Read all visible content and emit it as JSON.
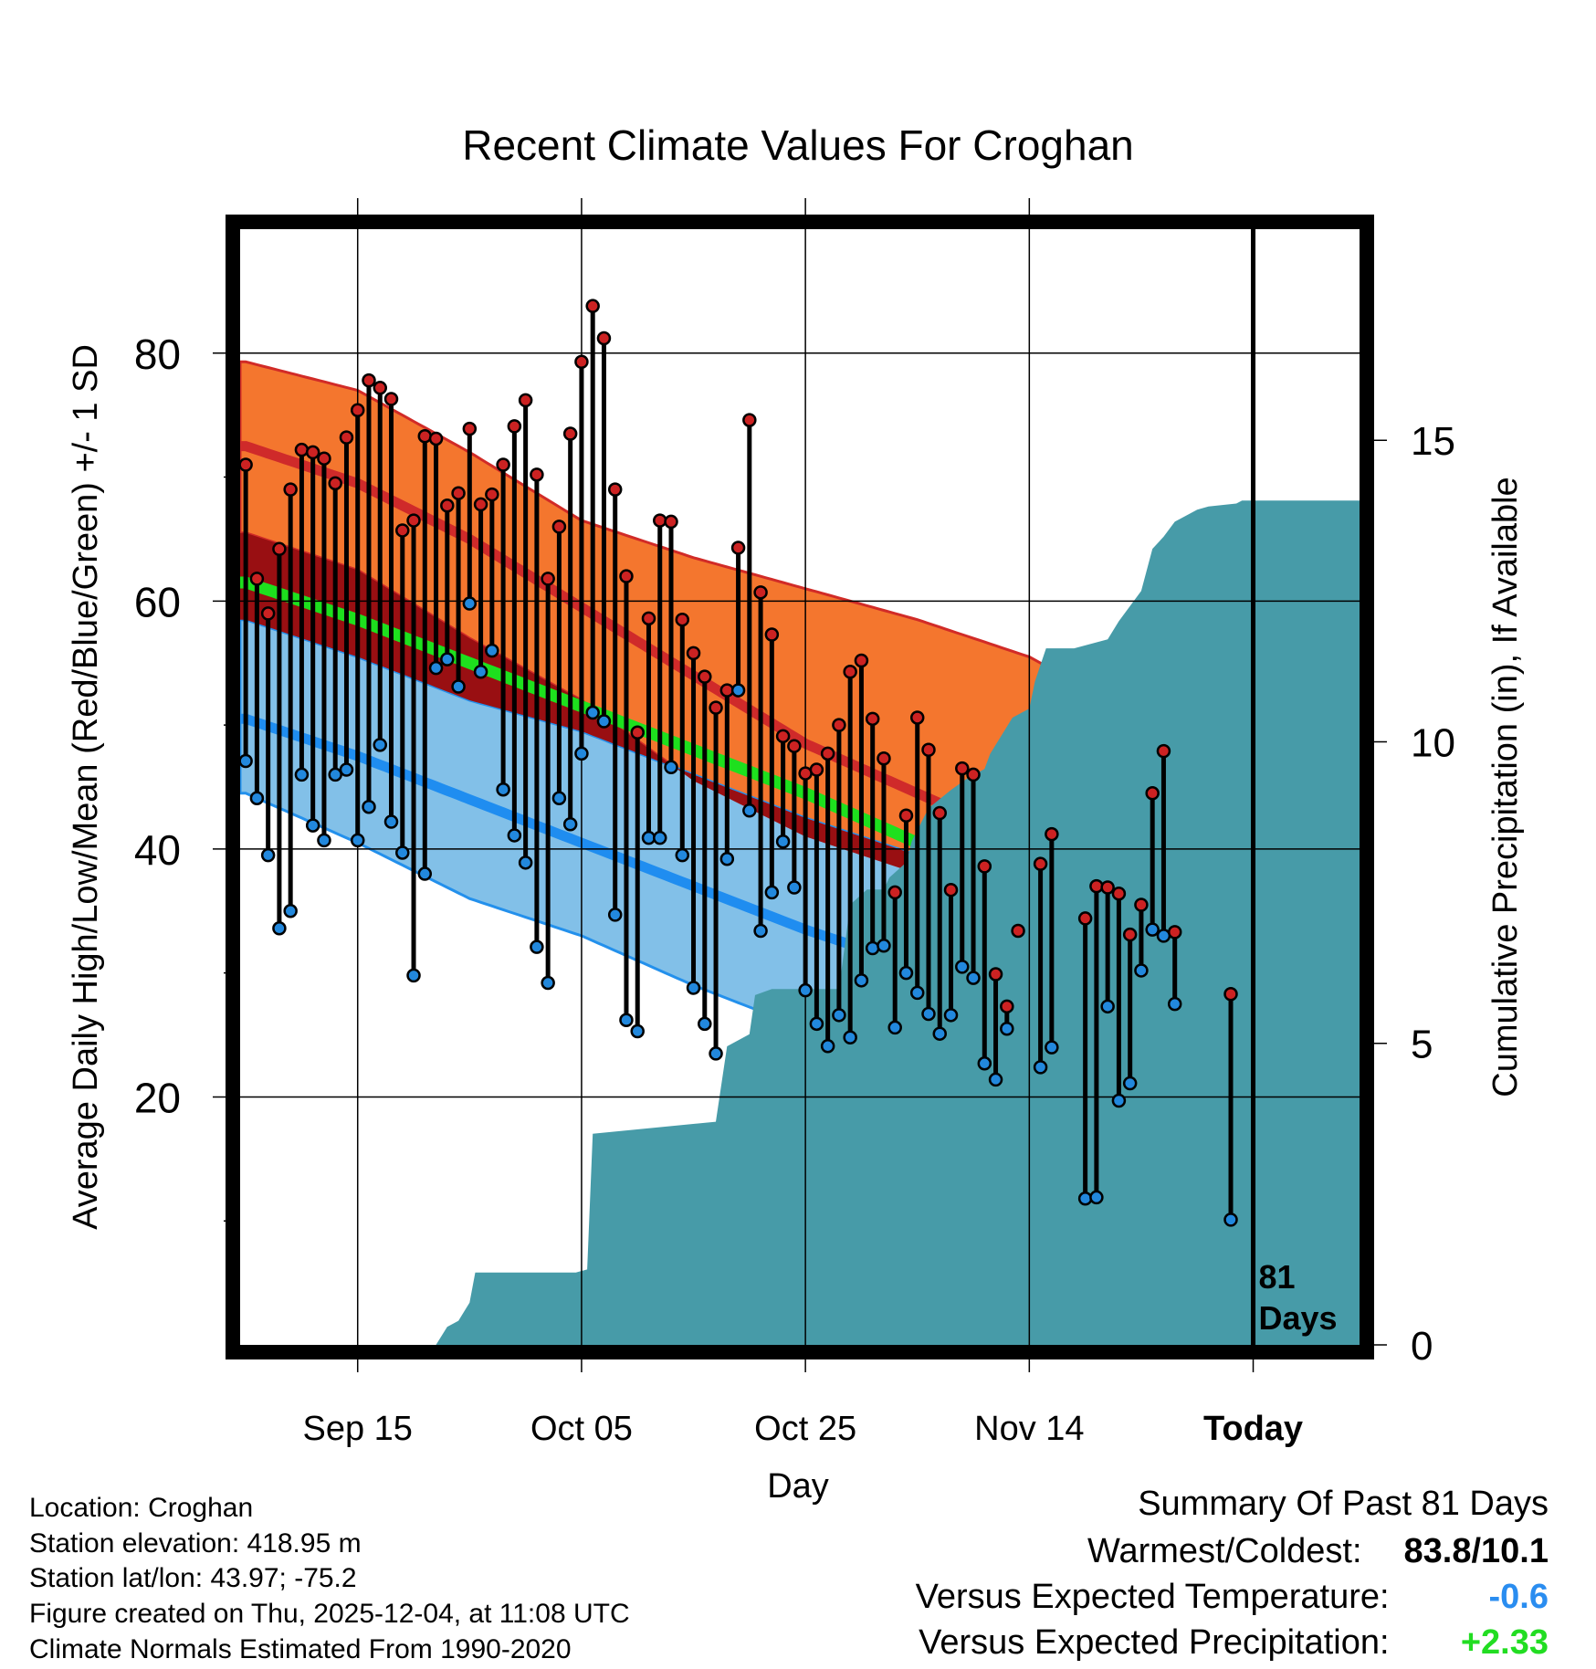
{
  "chart_data": {
    "type": "line",
    "title": "Recent Climate Values For Croghan",
    "xlabel": "Day",
    "ylabel_left": "Average Daily High/Low/Mean (Red/Blue/Green) +/- 1 SD",
    "ylabel_right": "Cumulative Precipitation (in), If Available",
    "x_range": [
      -0.5,
      99.5
    ],
    "x_ticks": [
      {
        "day": 10,
        "label": "Sep 15"
      },
      {
        "day": 30,
        "label": "Oct 05"
      },
      {
        "day": 50,
        "label": "Oct 25"
      },
      {
        "day": 70,
        "label": "Nov 14"
      },
      {
        "day": 90,
        "label": "Today"
      }
    ],
    "today_day": 90,
    "days_label": [
      "81",
      "Days"
    ],
    "y_left_range": [
      0,
      90
    ],
    "y_left_ticks": [
      20,
      40,
      60,
      80
    ],
    "y_left_minor": [
      10,
      30,
      50,
      70
    ],
    "y_right_range": [
      0,
      18.5
    ],
    "y_right_ticks": [
      0,
      5,
      10,
      15
    ],
    "normal_high": {
      "day": [
        0,
        10,
        20,
        30,
        40,
        50,
        60,
        70,
        80,
        90,
        99.5
      ],
      "mean": [
        72.5,
        69.5,
        65.0,
        59.5,
        54.0,
        48.5,
        44.5,
        40.5,
        36.5,
        32.5,
        28.7
      ],
      "upper": [
        79.3,
        77.0,
        72.0,
        66.5,
        63.5,
        61.0,
        58.5,
        55.5,
        50.5,
        45.5,
        42.5
      ],
      "lower": [
        65.5,
        62.5,
        57.0,
        52.0,
        45.5,
        41.0,
        38.0,
        33.5,
        28.0,
        24.0,
        22.0
      ]
    },
    "normal_mean": {
      "day": [
        0,
        10,
        20,
        30,
        40,
        50,
        60,
        70,
        80,
        90,
        99.5
      ],
      "mean": [
        61.5,
        58.5,
        55.0,
        51.5,
        48.0,
        44.5,
        40.5,
        36.0,
        31.5,
        27.5,
        25.0
      ]
    },
    "normal_low": {
      "day": [
        0,
        10,
        20,
        30,
        40,
        50,
        60,
        70,
        80,
        90,
        99.5
      ],
      "mean": [
        50.5,
        47.5,
        44.0,
        40.5,
        37.0,
        33.5,
        30.5,
        27.0,
        23.0,
        19.5,
        17.0
      ],
      "upper": [
        58.5,
        55.5,
        52.0,
        49.5,
        46.0,
        42.5,
        39.5,
        37.0,
        34.0,
        31.5,
        29.5
      ],
      "lower": [
        44.5,
        40.5,
        36.0,
        33.0,
        29.0,
        25.5,
        21.5,
        17.5,
        13.0,
        9.5,
        7.0
      ]
    },
    "series": [
      {
        "name": "Daily High",
        "color": "#cc2222",
        "values": [
          71.0,
          61.8,
          59.0,
          64.2,
          69.0,
          72.2,
          72.0,
          71.5,
          69.5,
          73.2,
          75.4,
          77.8,
          77.2,
          76.3,
          65.7,
          66.5,
          73.3,
          73.1,
          67.7,
          68.7,
          73.9,
          67.8,
          68.6,
          71.0,
          74.1,
          76.2,
          70.2,
          61.8,
          66.0,
          73.5,
          79.3,
          83.8,
          81.2,
          69.0,
          62.0,
          49.4,
          58.6,
          66.5,
          66.4,
          58.5,
          55.8,
          53.9,
          51.4,
          52.8,
          64.3,
          74.6,
          60.7,
          57.3,
          49.1,
          48.3,
          46.1,
          46.4,
          47.7,
          50.0,
          54.3,
          55.2,
          50.5,
          47.3,
          36.5,
          42.7,
          50.6,
          48.0,
          42.9,
          36.7,
          46.5,
          46.0,
          38.6,
          29.9,
          27.3,
          33.4,
          null,
          38.8,
          41.2,
          null,
          null,
          34.4,
          37.0,
          36.9,
          36.4,
          33.1,
          35.5,
          44.5,
          47.9,
          33.3,
          null,
          null,
          null,
          null,
          28.3,
          null,
          null,
          null,
          null,
          null
        ]
      },
      {
        "name": "Daily Low",
        "color": "#2288dd",
        "values": [
          47.1,
          44.1,
          39.5,
          33.6,
          35.0,
          46.0,
          41.9,
          40.7,
          46.0,
          46.4,
          40.7,
          43.4,
          48.4,
          42.2,
          39.7,
          29.8,
          38.0,
          54.6,
          55.3,
          53.1,
          59.8,
          54.3,
          56.0,
          44.8,
          41.1,
          38.9,
          32.1,
          29.2,
          44.1,
          42.0,
          47.7,
          51.0,
          50.3,
          34.7,
          26.2,
          25.3,
          40.9,
          40.9,
          46.6,
          39.5,
          28.8,
          25.9,
          23.5,
          39.2,
          52.8,
          43.1,
          33.4,
          36.5,
          40.6,
          36.9,
          28.6,
          25.9,
          24.1,
          26.6,
          24.8,
          29.4,
          32.0,
          32.2,
          25.6,
          30.0,
          28.4,
          26.7,
          25.1,
          26.6,
          30.5,
          29.6,
          22.7,
          21.4,
          25.5,
          null,
          null,
          22.4,
          24.0,
          null,
          null,
          11.8,
          11.9,
          27.3,
          19.7,
          21.1,
          30.2,
          33.5,
          33.0,
          27.5,
          null,
          null,
          null,
          null,
          10.1,
          null,
          null,
          null,
          null,
          null
        ]
      }
    ],
    "precip_cumulative": {
      "day": [
        17,
        18,
        19,
        20,
        20.5,
        29.5,
        30.5,
        31,
        42,
        43,
        45,
        45.5,
        47,
        48,
        53,
        54,
        55.5,
        57,
        57.5,
        59,
        59.5,
        61,
        63,
        64.5,
        66,
        66.5,
        68,
        68.5,
        70,
        70.5,
        71.5,
        72,
        74,
        77,
        78,
        80,
        81,
        82,
        83,
        83.5,
        85,
        86,
        88.5,
        89,
        99.5
      ],
      "values": [
        0,
        0.3,
        0.4,
        0.7,
        1.2,
        1.2,
        1.25,
        3.5,
        3.7,
        4.95,
        5.15,
        5.8,
        5.9,
        5.9,
        5.9,
        7.3,
        7.55,
        7.55,
        7.75,
        8.0,
        8.35,
        8.9,
        9.2,
        9.4,
        9.55,
        9.8,
        10.25,
        10.4,
        10.55,
        11.0,
        11.55,
        11.55,
        11.55,
        11.7,
        12.0,
        12.5,
        13.2,
        13.4,
        13.65,
        13.7,
        13.85,
        13.9,
        13.95,
        14.0,
        14.0
      ]
    },
    "colors": {
      "high_band": "#f4762e",
      "high_band_edge": "#d12b27",
      "high_mean": "#cf2a2a",
      "low_band": "#82c0e8",
      "low_band_edge": "#2390ec",
      "low_mean": "#1f8df0",
      "mean_line": "#1ee01e",
      "overlap": "#990f12",
      "precip": "#479ba8"
    }
  },
  "footer": {
    "location": "Location: Croghan",
    "elevation": "Station elevation: 418.95 m",
    "latlon": "Station lat/lon: 43.97; -75.2",
    "created": "Figure created on Thu, 2025-12-04, at 11:08 UTC",
    "normals": "Climate Normals Estimated From 1990-2020"
  },
  "summary": {
    "heading": "Summary Of Past 81 Days",
    "warm_cold_label": "Warmest/Coldest:",
    "warm_cold_value": "83.8/10.1",
    "temp_label": "Versus Expected Temperature:",
    "temp_value": "-0.6",
    "temp_color": "#2a8df0",
    "precip_label": "Versus Expected Precipitation:",
    "precip_value": "+2.33",
    "precip_color": "#22dd22"
  }
}
